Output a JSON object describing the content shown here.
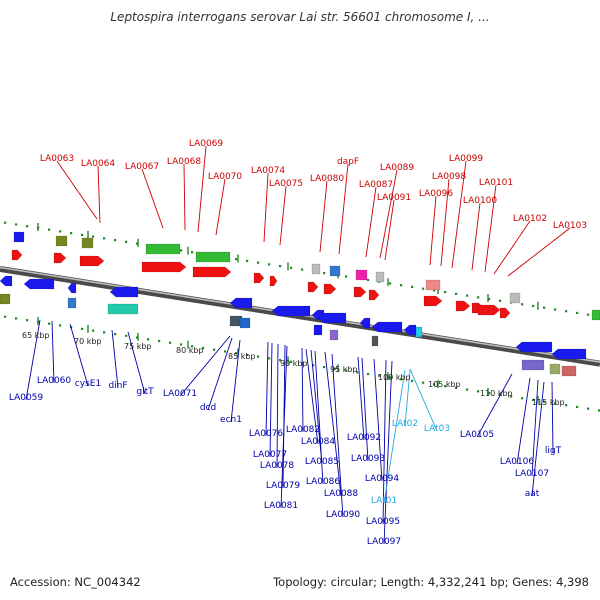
{
  "title": "Leptospira interrogans serovar Lai str. 56601 chromosome I, ...",
  "footer": {
    "accession": "Accession: NC_004342",
    "stats": "Topology: circular; Length: 4,332,241 bp; Genes: 4,398"
  },
  "colors": {
    "upper_label": "#cc0000",
    "lower_label": "#0000aa",
    "trna_label": "#22aadd",
    "backbone": "#777777",
    "tick": "#228822"
  },
  "scale": [
    "65 kbp",
    "70 kbp",
    "75 kbp",
    "80 kbp",
    "85 kbp",
    "90 kbp",
    "95 kbp",
    "100 kbp",
    "105 kbp",
    "110 kbp",
    "115 kbp"
  ],
  "upper_genes": [
    "LA0063",
    "LA0064",
    "LA0067",
    "LA0068",
    "LA0069",
    "LA0070",
    "LA0074",
    "LA0075",
    "LA0080",
    "dapF",
    "LA0087",
    "LA0089",
    "LA0091",
    "LA0096",
    "LA0098",
    "LA0099",
    "LA0100",
    "LA0101",
    "LA0102",
    "LA0103"
  ],
  "lower_genes": [
    "LA0059",
    "LA0060",
    "cysE1",
    "dinF",
    "gltT",
    "LA0071",
    "dcd",
    "ech1",
    "LA0076",
    "LA0077",
    "LA0078",
    "LA0079",
    "LA0081",
    "LA0082",
    "LA0084",
    "LA0085",
    "LA0086",
    "LA0088",
    "LA0090",
    "LA0092",
    "LA0093",
    "LA0094",
    "LA0095",
    "LA0097",
    "LA0105",
    "LA0106",
    "LA0107",
    "ligT",
    "aat"
  ],
  "trna_genes": [
    "LAt01",
    "LAt02",
    "LAt03"
  ]
}
